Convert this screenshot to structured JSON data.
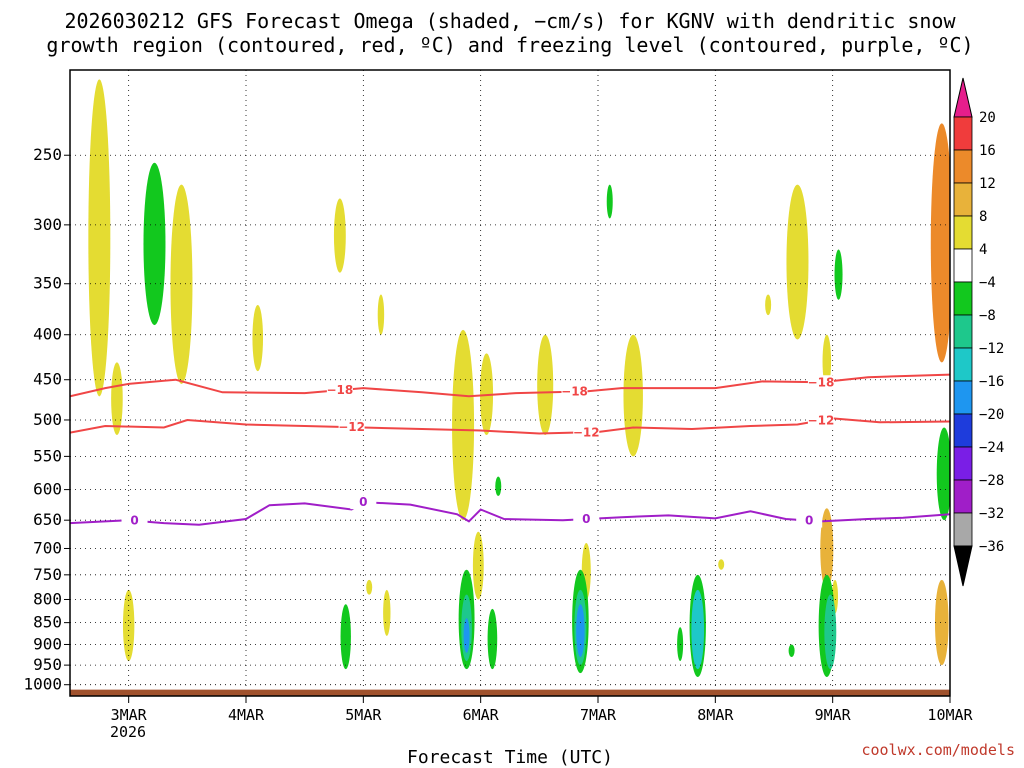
{
  "chart_data": {
    "type": "heatmap",
    "title_line1": "2026030212 GFS Forecast Omega (shaded, −cm/s) for KGNV with dendritic snow",
    "title_line2": "growth region (contoured, red, ºC) and freezing level (contoured, purple, ºC)",
    "xlabel": "Forecast Time (UTC)",
    "credit": "coolwx.com/models",
    "x_ticks": [
      "3MAR",
      "4MAR",
      "5MAR",
      "6MAR",
      "7MAR",
      "8MAR",
      "9MAR",
      "10MAR"
    ],
    "x_year_label": "2026",
    "x_range_days": [
      2.5,
      10.0
    ],
    "y_ticks": [
      250,
      300,
      350,
      400,
      450,
      500,
      550,
      600,
      650,
      700,
      750,
      800,
      850,
      900,
      950,
      1000
    ],
    "y_range_hpa": [
      200,
      1030
    ],
    "y_label_strings": [
      "250",
      "300",
      "350",
      "400",
      "450",
      "500",
      "550",
      "600",
      "650",
      "700",
      "750",
      "800",
      "850",
      "900",
      "950",
      "1000"
    ],
    "colorbar": {
      "labels": [
        "20",
        "16",
        "12",
        "8",
        "4",
        "−4",
        "−8",
        "−12",
        "−16",
        "−20",
        "−24",
        "−28",
        "−32",
        "−36"
      ],
      "bins": [
        {
          "from": 16,
          "to": 20,
          "color": "#f03c3c"
        },
        {
          "from": 12,
          "to": 16,
          "color": "#ec8a2a"
        },
        {
          "from": 8,
          "to": 12,
          "color": "#e8b23a"
        },
        {
          "from": 4,
          "to": 8,
          "color": "#e4dc32"
        },
        {
          "from": -4,
          "to": 4,
          "color": "#ffffff"
        },
        {
          "from": -8,
          "to": -4,
          "color": "#12c81e"
        },
        {
          "from": -12,
          "to": -8,
          "color": "#1ec88c"
        },
        {
          "from": -16,
          "to": -12,
          "color": "#1ec8c8"
        },
        {
          "from": -20,
          "to": -16,
          "color": "#1e96f0"
        },
        {
          "from": -24,
          "to": -20,
          "color": "#1e3cdc"
        },
        {
          "from": -28,
          "to": -24,
          "color": "#7a1ee6"
        },
        {
          "from": -32,
          "to": -28,
          "color": "#a01ec8"
        },
        {
          "from": -36,
          "to": -32,
          "color": "#a8a8a8"
        }
      ],
      "top_arrow_color": "#e61e8c",
      "bottom_arrow_color": "#000000"
    },
    "contours": [
      {
        "name": "dgz-minus18",
        "label": "−18",
        "color": "#f04646",
        "points": [
          [
            2.5,
            470
          ],
          [
            2.8,
            460
          ],
          [
            3.0,
            455
          ],
          [
            3.4,
            450
          ],
          [
            3.8,
            465
          ],
          [
            4.5,
            466
          ],
          [
            5.0,
            460
          ],
          [
            5.5,
            465
          ],
          [
            5.9,
            470
          ],
          [
            6.3,
            466
          ],
          [
            6.9,
            464
          ],
          [
            7.2,
            460
          ],
          [
            8.0,
            460
          ],
          [
            8.4,
            452
          ],
          [
            8.9,
            453
          ],
          [
            9.3,
            447
          ],
          [
            10.0,
            444
          ]
        ],
        "label_positions": [
          4.8,
          6.8,
          8.9
        ]
      },
      {
        "name": "dgz-minus12",
        "label": "−12",
        "color": "#f04646",
        "points": [
          [
            2.5,
            517
          ],
          [
            2.8,
            508
          ],
          [
            3.3,
            510
          ],
          [
            3.5,
            500
          ],
          [
            4.0,
            506
          ],
          [
            4.5,
            508
          ],
          [
            5.0,
            510
          ],
          [
            5.5,
            512
          ],
          [
            6.0,
            514
          ],
          [
            6.5,
            518
          ],
          [
            7.0,
            516
          ],
          [
            7.3,
            510
          ],
          [
            7.8,
            512
          ],
          [
            8.3,
            508
          ],
          [
            8.7,
            506
          ],
          [
            9.0,
            498
          ],
          [
            9.4,
            503
          ],
          [
            10.0,
            502
          ]
        ],
        "label_positions": [
          4.9,
          6.9,
          8.9
        ]
      },
      {
        "name": "freezing-level-0",
        "label": "0",
        "color": "#a01ec8",
        "points": [
          [
            2.5,
            655
          ],
          [
            3.0,
            650
          ],
          [
            3.3,
            655
          ],
          [
            3.6,
            658
          ],
          [
            4.0,
            648
          ],
          [
            4.2,
            625
          ],
          [
            4.5,
            622
          ],
          [
            4.9,
            632
          ],
          [
            5.0,
            620
          ],
          [
            5.4,
            624
          ],
          [
            5.8,
            640
          ],
          [
            5.9,
            652
          ],
          [
            6.0,
            632
          ],
          [
            6.2,
            648
          ],
          [
            6.7,
            650
          ],
          [
            7.2,
            645
          ],
          [
            7.6,
            642
          ],
          [
            8.0,
            647
          ],
          [
            8.3,
            635
          ],
          [
            8.6,
            648
          ],
          [
            8.9,
            652
          ],
          [
            9.3,
            648
          ],
          [
            9.6,
            646
          ],
          [
            10.0,
            640
          ]
        ],
        "label_positions": [
          3.05,
          5.0,
          6.9,
          8.8
        ]
      }
    ],
    "shaded_regions": [
      {
        "name": "omega-up-8",
        "value": 6,
        "day": 2.75,
        "p_top": 205,
        "p_bot": 470
      },
      {
        "name": "omega-up-9",
        "value": 6,
        "day": 2.9,
        "p_top": 430,
        "p_bot": 520
      },
      {
        "name": "omega-up-10",
        "value": 6,
        "day": 3.45,
        "p_top": 270,
        "p_bot": 455
      },
      {
        "name": "omega-up-11",
        "value": 6,
        "day": 3.0,
        "p_top": 780,
        "p_bot": 940
      },
      {
        "name": "omega-up-12",
        "value": 6,
        "day": 4.1,
        "p_top": 370,
        "p_bot": 440
      },
      {
        "name": "omega-up-13",
        "value": 6,
        "day": 4.8,
        "p_top": 280,
        "p_bot": 340
      },
      {
        "name": "omega-up-14",
        "value": 6,
        "day": 5.15,
        "p_top": 360,
        "p_bot": 400
      },
      {
        "name": "omega-up-15",
        "value": 6,
        "day": 5.05,
        "p_top": 760,
        "p_bot": 790
      },
      {
        "name": "omega-up-16",
        "value": 6,
        "day": 5.2,
        "p_top": 780,
        "p_bot": 880
      },
      {
        "name": "omega-up-17",
        "value": 6,
        "day": 5.85,
        "p_top": 395,
        "p_bot": 650
      },
      {
        "name": "omega-up-18",
        "value": 6,
        "day": 6.05,
        "p_top": 420,
        "p_bot": 520
      },
      {
        "name": "omega-up-19",
        "value": 6,
        "day": 5.98,
        "p_top": 670,
        "p_bot": 800
      },
      {
        "name": "omega-up-20",
        "value": 6,
        "day": 6.9,
        "p_top": 690,
        "p_bot": 800
      },
      {
        "name": "omega-up-21",
        "value": 6,
        "day": 6.55,
        "p_top": 400,
        "p_bot": 520
      },
      {
        "name": "omega-up-22",
        "value": 6,
        "day": 7.3,
        "p_top": 400,
        "p_bot": 550
      },
      {
        "name": "omega-up-23",
        "value": 6,
        "day": 8.05,
        "p_top": 720,
        "p_bot": 740
      },
      {
        "name": "omega-up-24",
        "value": 6,
        "day": 8.7,
        "p_top": 270,
        "p_bot": 405
      },
      {
        "name": "omega-up-25",
        "value": 6,
        "day": 8.45,
        "p_top": 360,
        "p_bot": 380
      },
      {
        "name": "omega-up-26",
        "value": 6,
        "day": 8.95,
        "p_top": 400,
        "p_bot": 460
      },
      {
        "name": "omega-up-27",
        "value": 9,
        "day": 8.95,
        "p_top": 630,
        "p_bot": 780
      },
      {
        "name": "omega-up-28",
        "value": 6,
        "day": 9.02,
        "p_top": 760,
        "p_bot": 830
      },
      {
        "name": "omega-up-29",
        "value": 13,
        "day": 9.93,
        "p_top": 230,
        "p_bot": 430
      },
      {
        "name": "omega-up-30",
        "value": 9,
        "day": 9.93,
        "p_top": 760,
        "p_bot": 950
      },
      {
        "name": "omega-down-1",
        "value": -6,
        "day": 3.22,
        "p_top": 255,
        "p_bot": 390
      },
      {
        "name": "omega-down-2",
        "value": -6,
        "day": 4.85,
        "p_top": 810,
        "p_bot": 960
      },
      {
        "name": "omega-down-3",
        "value": -6,
        "day": 5.88,
        "p_top": 740,
        "p_bot": 960
      },
      {
        "name": "omega-down-4",
        "value": -10,
        "day": 5.88,
        "p_top": 790,
        "p_bot": 940
      },
      {
        "name": "omega-down-5",
        "value": -18,
        "day": 5.88,
        "p_top": 840,
        "p_bot": 920
      },
      {
        "name": "omega-down-6",
        "value": -6,
        "day": 6.1,
        "p_top": 820,
        "p_bot": 960
      },
      {
        "name": "omega-down-7",
        "value": -6,
        "day": 6.85,
        "p_top": 740,
        "p_bot": 970
      },
      {
        "name": "omega-down-8",
        "value": -10,
        "day": 6.85,
        "p_top": 780,
        "p_bot": 950
      },
      {
        "name": "omega-down-9",
        "value": -18,
        "day": 6.85,
        "p_top": 810,
        "p_bot": 930
      },
      {
        "name": "omega-down-10",
        "value": -6,
        "day": 7.85,
        "p_top": 750,
        "p_bot": 980
      },
      {
        "name": "omega-down-11",
        "value": -14,
        "day": 7.85,
        "p_top": 780,
        "p_bot": 960
      },
      {
        "name": "omega-down-12",
        "value": -6,
        "day": 7.7,
        "p_top": 860,
        "p_bot": 940
      },
      {
        "name": "omega-down-13",
        "value": -6,
        "day": 8.95,
        "p_top": 750,
        "p_bot": 980
      },
      {
        "name": "omega-down-14",
        "value": -11,
        "day": 8.98,
        "p_top": 790,
        "p_bot": 960
      },
      {
        "name": "omega-down-15",
        "value": -6,
        "day": 8.65,
        "p_top": 900,
        "p_bot": 930
      },
      {
        "name": "omega-down-16",
        "value": -6,
        "day": 9.05,
        "p_top": 320,
        "p_bot": 365
      },
      {
        "name": "omega-down-17",
        "value": -6,
        "day": 9.95,
        "p_top": 510,
        "p_bot": 650
      },
      {
        "name": "omega-down-18",
        "value": -6,
        "day": 6.15,
        "p_top": 580,
        "p_bot": 610
      },
      {
        "name": "omega-down-19",
        "value": -6,
        "day": 7.1,
        "p_top": 270,
        "p_bot": 295
      }
    ],
    "surface_fill_color": "#a0522d"
  }
}
